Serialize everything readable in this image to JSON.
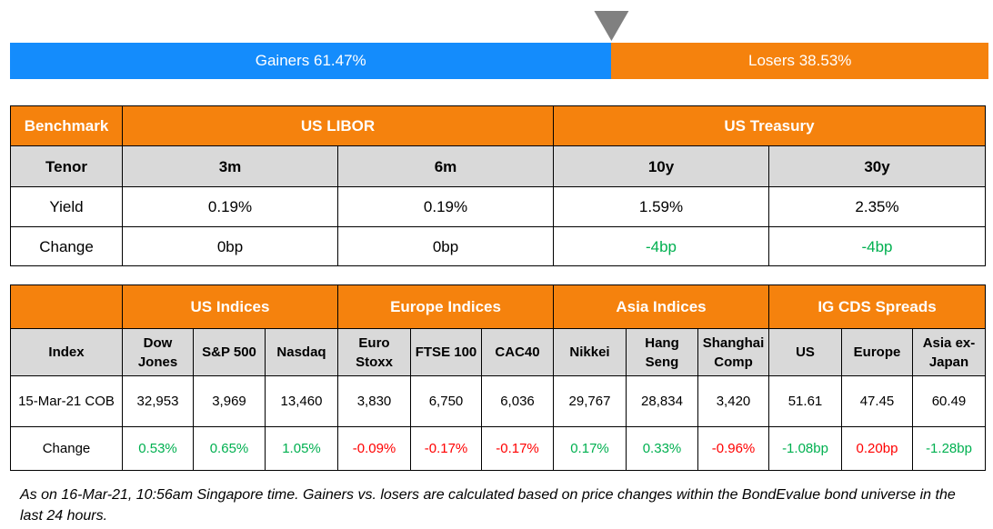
{
  "gauge": {
    "gainers": {
      "label": "Gainers 61.47%",
      "value": 61.47,
      "color": "#148cfc"
    },
    "losers": {
      "label": "Losers 38.53%",
      "value": 38.53,
      "color": "#f5820d"
    }
  },
  "rates_table": {
    "header": [
      "Benchmark",
      "US LIBOR",
      "US Treasury"
    ],
    "tenor_row": [
      "Tenor",
      "3m",
      "6m",
      "10y",
      "30y"
    ],
    "rows": [
      [
        "Yield",
        "0.19%",
        "0.19%",
        "1.59%",
        "2.35%"
      ],
      [
        "Change",
        "0bp",
        "0bp",
        "-4bp",
        "-4bp"
      ]
    ],
    "change_colors": [
      "#000000",
      "#000000",
      "#000000",
      "#00b050",
      "#00b050"
    ]
  },
  "indices_table": {
    "groups": [
      "US Indices",
      "Europe Indices",
      "Asia Indices",
      "IG CDS Spreads"
    ],
    "columns": [
      "Index",
      "Dow Jones",
      "S&P 500",
      "Nasdaq",
      "Euro Stoxx",
      "FTSE 100",
      "CAC40",
      "Nikkei",
      "Hang Seng",
      "Shanghai Comp",
      "US",
      "Europe",
      "Asia ex-Japan"
    ],
    "rows": [
      [
        "15-Mar-21 COB",
        "32,953",
        "3,969",
        "13,460",
        "3,830",
        "6,750",
        "6,036",
        "29,767",
        "28,834",
        "3,420",
        "51.61",
        "47.45",
        "60.49"
      ],
      [
        "Change",
        "0.53%",
        "0.65%",
        "1.05%",
        "-0.09%",
        "-0.17%",
        "-0.17%",
        "0.17%",
        "0.33%",
        "-0.96%",
        "-1.08bp",
        "0.20bp",
        "-1.28bp"
      ]
    ],
    "change_colors": [
      "#000000",
      "#00b050",
      "#00b050",
      "#00b050",
      "#ff0000",
      "#ff0000",
      "#ff0000",
      "#00b050",
      "#00b050",
      "#ff0000",
      "#00b050",
      "#ff0000",
      "#00b050"
    ]
  },
  "footnote": "As on 16-Mar-21, 10:56am Singapore time. Gainers vs. losers are calculated based on price changes within the BondEvalue bond universe in the last 24 hours."
}
